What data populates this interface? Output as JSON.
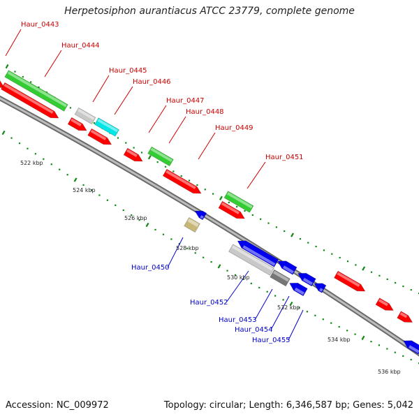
{
  "title": "Herpetosiphon aurantiacus ATCC 23779, complete genome",
  "footer": {
    "accession": "Accession: NC_009972",
    "summary": "Topology: circular; Length: 6,346,587 bp; Genes: 5,042"
  },
  "colors": {
    "forward_label": "#cc0000",
    "reverse_label": "#0000cc",
    "red": "#ff0000",
    "green": "#33cc33",
    "blue": "#0000ee",
    "cyan": "#00e5e5",
    "grey": "#c8c8c8",
    "darkgrey": "#777777",
    "khaki": "#c8b878",
    "tick": "#118811",
    "backbone": "#888888"
  },
  "diagram": {
    "scale_labels": [
      "522 kbp",
      "524 kbp",
      "526 kbp",
      "528 kbp",
      "530 kbp",
      "532 kbp",
      "534 kbp",
      "536 kbp"
    ],
    "forward_labels": [
      "Haur_0443",
      "Haur_0444",
      "Haur_0445",
      "Haur_0446",
      "Haur_0447",
      "Haur_0448",
      "Haur_0449",
      "Haur_0451"
    ],
    "reverse_labels": [
      "Haur_0450",
      "Haur_0452",
      "Haur_0453",
      "Haur_0454",
      "Haur_0455"
    ]
  }
}
